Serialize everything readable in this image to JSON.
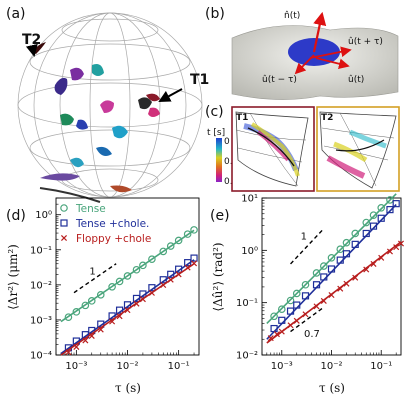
{
  "panels": {
    "a": "(a)",
    "b": "(b)",
    "c": "(c)",
    "d": "(d)",
    "e": "(e)"
  },
  "panel_a": {
    "track_labels": [
      "T2",
      "T1"
    ]
  },
  "panel_b": {
    "labels": [
      "n̂(t)",
      "û(t + τ)",
      "û(t − τ)",
      "û(t)"
    ]
  },
  "panel_c": {
    "colorbar_title": "t [s]",
    "colorbar_ticks": [
      "0",
      "0.25",
      "0.5"
    ],
    "inset_titles": [
      "T1",
      "T2"
    ]
  },
  "colors": {
    "tense": "#4aa57c",
    "tense_chole": "#1f2f9a",
    "floppy_chole": "#b81e1e",
    "t1_frame": "#8b1a2a",
    "t2_frame": "#d4a024"
  },
  "chart_data": [
    {
      "type": "scatter",
      "panel": "(d)",
      "xlabel": "τ (s)",
      "ylabel": "⟨Δr²⟩ (μm²)",
      "xscale": "log",
      "yscale": "log",
      "xlim": [
        0.0004,
        0.25
      ],
      "ylim": [
        0.0001,
        3
      ],
      "xticks": [
        "10⁻³",
        "10⁻²",
        "10⁻¹"
      ],
      "yticks": [
        "10⁻⁴",
        "10⁻³",
        "10⁻²",
        "10⁻¹",
        "10⁰"
      ],
      "legend": "top-left",
      "slope_label": "1",
      "series": [
        {
          "name": "Tense",
          "marker": "circle",
          "points": [
            [
              0.0007,
              0.0012
            ],
            [
              0.001,
              0.0017
            ],
            [
              0.0015,
              0.0026
            ],
            [
              0.002,
              0.0035
            ],
            [
              0.003,
              0.0052
            ],
            [
              0.005,
              0.0088
            ],
            [
              0.007,
              0.0125
            ],
            [
              0.01,
              0.018
            ],
            [
              0.015,
              0.027
            ],
            [
              0.02,
              0.036
            ],
            [
              0.03,
              0.054
            ],
            [
              0.05,
              0.09
            ],
            [
              0.07,
              0.128
            ],
            [
              0.1,
              0.185
            ],
            [
              0.15,
              0.28
            ],
            [
              0.2,
              0.37
            ]
          ],
          "fit": [
            [
              0.0005,
              0.0009
            ],
            [
              0.2,
              0.36
            ]
          ]
        },
        {
          "name": "Tense +chole.",
          "marker": "square",
          "points": [
            [
              0.0007,
              0.00016
            ],
            [
              0.001,
              0.00025
            ],
            [
              0.0015,
              0.00038
            ],
            [
              0.002,
              0.0005
            ],
            [
              0.003,
              0.00076
            ],
            [
              0.005,
              0.0013
            ],
            [
              0.007,
              0.0019
            ],
            [
              0.01,
              0.0027
            ],
            [
              0.015,
              0.0041
            ],
            [
              0.02,
              0.0055
            ],
            [
              0.03,
              0.0083
            ],
            [
              0.05,
              0.014
            ],
            [
              0.07,
              0.02
            ],
            [
              0.1,
              0.028
            ],
            [
              0.15,
              0.043
            ],
            [
              0.2,
              0.058
            ]
          ],
          "fit": [
            [
              0.0005,
              0.00011
            ],
            [
              0.2,
              0.052
            ]
          ]
        },
        {
          "name": "Floppy +chole",
          "marker": "x",
          "points": [
            [
              0.0007,
              0.00012
            ],
            [
              0.001,
              0.00017
            ],
            [
              0.0015,
              0.00026
            ],
            [
              0.002,
              0.00035
            ],
            [
              0.003,
              0.00053
            ],
            [
              0.005,
              0.0009
            ],
            [
              0.007,
              0.00128
            ],
            [
              0.01,
              0.0019
            ],
            [
              0.015,
              0.0029
            ],
            [
              0.02,
              0.0039
            ],
            [
              0.03,
              0.0059
            ],
            [
              0.05,
              0.0099
            ],
            [
              0.07,
              0.014
            ],
            [
              0.1,
              0.02
            ],
            [
              0.15,
              0.031
            ],
            [
              0.2,
              0.041
            ]
          ],
          "fit": [
            [
              0.0005,
              0.0001
            ],
            [
              0.2,
              0.04
            ]
          ]
        }
      ]
    },
    {
      "type": "scatter",
      "panel": "(e)",
      "xlabel": "τ (s)",
      "ylabel": "⟨Δû²⟩ (rad²)",
      "xscale": "log",
      "yscale": "log",
      "xlim": [
        0.0004,
        0.25
      ],
      "ylim": [
        0.01,
        10
      ],
      "xticks": [
        "10⁻³",
        "10⁻²",
        "10⁻¹"
      ],
      "yticks": [
        "10⁻²",
        "10⁻¹",
        "10⁰",
        "10¹"
      ],
      "slope_labels": [
        "1",
        "0.7"
      ],
      "series": [
        {
          "name": "Tense",
          "marker": "circle",
          "points": [
            [
              0.0007,
              0.055
            ],
            [
              0.001,
              0.075
            ],
            [
              0.0015,
              0.11
            ],
            [
              0.002,
              0.15
            ],
            [
              0.003,
              0.22
            ],
            [
              0.005,
              0.37
            ],
            [
              0.007,
              0.5
            ],
            [
              0.01,
              0.72
            ],
            [
              0.015,
              1.05
            ],
            [
              0.02,
              1.4
            ],
            [
              0.03,
              2.1
            ],
            [
              0.05,
              3.4
            ],
            [
              0.07,
              4.7
            ],
            [
              0.1,
              6.5
            ],
            [
              0.15,
              9.2
            ]
          ],
          "fit": [
            [
              0.0005,
              0.04
            ],
            [
              0.2,
              12
            ]
          ]
        },
        {
          "name": "Tense +chole.",
          "marker": "square",
          "points": [
            [
              0.0007,
              0.032
            ],
            [
              0.001,
              0.046
            ],
            [
              0.0015,
              0.069
            ],
            [
              0.002,
              0.09
            ],
            [
              0.003,
              0.135
            ],
            [
              0.005,
              0.22
            ],
            [
              0.007,
              0.31
            ],
            [
              0.01,
              0.44
            ],
            [
              0.015,
              0.65
            ],
            [
              0.02,
              0.86
            ],
            [
              0.03,
              1.3
            ],
            [
              0.05,
              2.1
            ],
            [
              0.07,
              2.9
            ],
            [
              0.1,
              4.1
            ],
            [
              0.15,
              6.0
            ],
            [
              0.2,
              7.8
            ]
          ],
          "fit": [
            [
              0.0005,
              0.02
            ],
            [
              0.2,
              7.5
            ]
          ]
        },
        {
          "name": "Floppy +chole",
          "marker": "x",
          "points": [
            [
              0.0006,
              0.021
            ],
            [
              0.0008,
              0.025
            ],
            [
              0.001,
              0.028
            ],
            [
              0.0015,
              0.037
            ],
            [
              0.002,
              0.045
            ],
            [
              0.003,
              0.06
            ],
            [
              0.005,
              0.085
            ],
            [
              0.007,
              0.108
            ],
            [
              0.01,
              0.14
            ],
            [
              0.015,
              0.185
            ],
            [
              0.02,
              0.23
            ],
            [
              0.03,
              0.3
            ],
            [
              0.05,
              0.43
            ],
            [
              0.07,
              0.55
            ],
            [
              0.1,
              0.72
            ],
            [
              0.15,
              0.95
            ],
            [
              0.2,
              1.15
            ],
            [
              0.25,
              1.35
            ]
          ],
          "fit": [
            [
              0.0005,
              0.017
            ],
            [
              0.25,
              1.45
            ]
          ]
        }
      ]
    }
  ]
}
